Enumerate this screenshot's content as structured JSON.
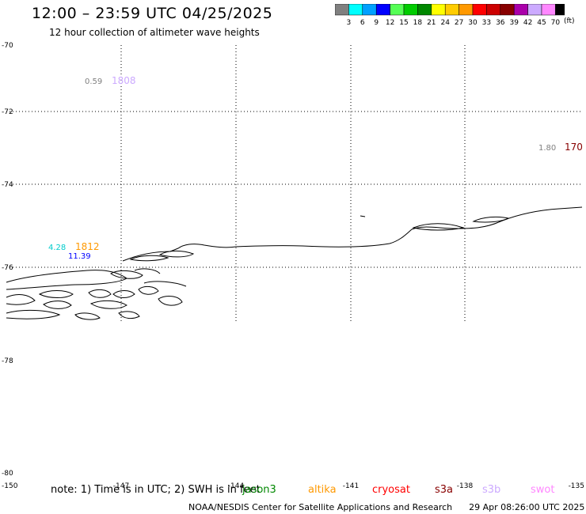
{
  "header": {
    "title": "12:00 – 23:59 UTC 04/25/2025",
    "subtitle": "12 hour collection of altimeter wave heights"
  },
  "colorbar": {
    "colors": [
      "#808080",
      "#00ffff",
      "#00a0ff",
      "#0000ff",
      "#55ff55",
      "#00cc00",
      "#008800",
      "#ffff00",
      "#ffcc00",
      "#ff9900",
      "#ff0000",
      "#cc0000",
      "#880000",
      "#aa00aa",
      "#ccaaff",
      "#ff88ff",
      "#000000"
    ],
    "labels": [
      "3",
      "6",
      "9",
      "12",
      "15",
      "18",
      "21",
      "24",
      "27",
      "30",
      "33",
      "36",
      "39",
      "42",
      "45",
      "70"
    ],
    "unit": "(ft)"
  },
  "map": {
    "lat_labels": [
      "-70",
      "-72",
      "-74",
      "-76",
      "-78",
      "-80"
    ],
    "lon_labels": [
      "-150",
      "-147",
      "-144",
      "-141",
      "-138",
      "-135"
    ],
    "obs": [
      {
        "value": "0.59",
        "time": "1808",
        "value_color": "#808080",
        "time_color": "#ccaaff"
      },
      {
        "value": "1.80",
        "time": "170",
        "value_color": "#808080",
        "time_color": "#880000"
      },
      {
        "value": "4.28",
        "time": "1812",
        "value_color": "#00ffff",
        "time_color": "#ff9900"
      },
      {
        "value": "11.39",
        "time": "",
        "value_color": "#0000ff",
        "time_color": "#0000ff"
      }
    ]
  },
  "footer": {
    "note": "note: 1) Time is in UTC; 2) SWH is in feet",
    "satellites": [
      {
        "name": "jason3",
        "color": "#008800"
      },
      {
        "name": "altika",
        "color": "#ff9900"
      },
      {
        "name": "cryosat",
        "color": "#ff0000"
      },
      {
        "name": "s3a",
        "color": "#880000"
      },
      {
        "name": "s3b",
        "color": "#ccaaff"
      },
      {
        "name": "swot",
        "color": "#ff88ff"
      }
    ],
    "credit": "NOAA/NESDIS Center for Satellite Applications and Research",
    "generated": "29 Apr 08:26:00 UTC 2025"
  }
}
